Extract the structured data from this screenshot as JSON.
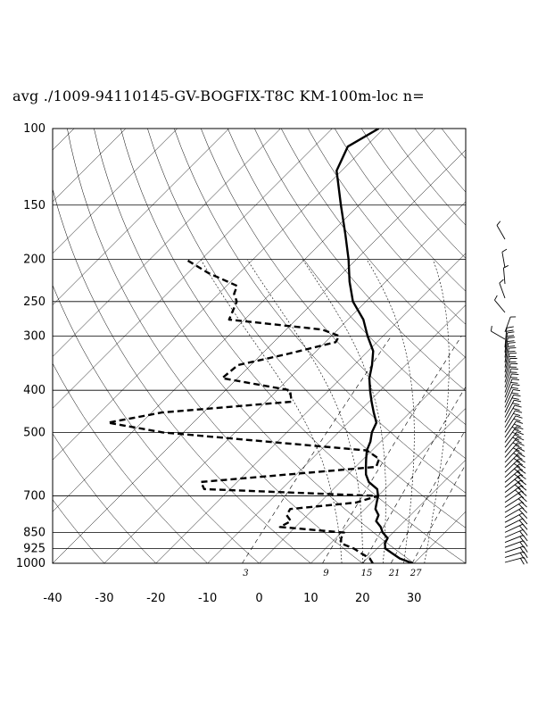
{
  "title": "avg ./1009-94110145-GV-BOGFIX-T8C KM-100m-loc n=",
  "chart_data": {
    "type": "line",
    "chart_kind": "skew-T log-P diagram",
    "title": "avg ./1009-94110145-GV-BOGFIX-T8C KM-100m-loc n=",
    "xlabel": "",
    "ylabel": "",
    "pressure_range_hPa": [
      100,
      1000
    ],
    "y_scale": "log (inverted)",
    "pressure_ticks": [
      100,
      150,
      200,
      250,
      300,
      400,
      500,
      700,
      850,
      925,
      1000
    ],
    "temperature_ticks": [
      -40,
      -30,
      -20,
      -10,
      0,
      10,
      20,
      30
    ],
    "temperature_range_at_1000hPa_C": [
      -40,
      40
    ],
    "mixing_ratio_labels": [
      "3",
      "9",
      "15",
      "21",
      "27"
    ],
    "grid": true,
    "series": [
      {
        "style": "solid",
        "points": [
          [
            1000,
            29.7
          ],
          [
            975,
            26.3
          ],
          [
            950,
            24.0
          ],
          [
            925,
            21.6
          ],
          [
            900,
            20.5
          ],
          [
            875,
            20.0
          ],
          [
            850,
            18.0
          ],
          [
            825,
            16.5
          ],
          [
            800,
            14.5
          ],
          [
            775,
            13.8
          ],
          [
            750,
            12.0
          ],
          [
            725,
            11.0
          ],
          [
            700,
            10.0
          ],
          [
            675,
            8.5
          ],
          [
            650,
            5.5
          ],
          [
            625,
            3.5
          ],
          [
            600,
            2.0
          ],
          [
            575,
            0.5
          ],
          [
            550,
            -1.0
          ],
          [
            525,
            -2.0
          ],
          [
            500,
            -3.5
          ],
          [
            475,
            -4.5
          ],
          [
            450,
            -7.0
          ],
          [
            425,
            -9.5
          ],
          [
            400,
            -12.0
          ],
          [
            375,
            -14.5
          ],
          [
            350,
            -16.5
          ],
          [
            325,
            -19.0
          ],
          [
            300,
            -23.0
          ],
          [
            275,
            -27.0
          ],
          [
            250,
            -32.5
          ],
          [
            225,
            -37.0
          ],
          [
            200,
            -41.5
          ],
          [
            175,
            -47.0
          ],
          [
            150,
            -53.5
          ],
          [
            125,
            -61.0
          ],
          [
            110,
            -63.5
          ],
          [
            100,
            -61.0
          ]
        ]
      },
      {
        "style": "dashed",
        "points": [
          [
            1000,
            22.0
          ],
          [
            975,
            20.5
          ],
          [
            950,
            18.0
          ],
          [
            925,
            15.5
          ],
          [
            900,
            12.0
          ],
          [
            875,
            11.0
          ],
          [
            850,
            10.5
          ],
          [
            825,
            -3.0
          ],
          [
            800,
            -2.0
          ],
          [
            775,
            -4.0
          ],
          [
            750,
            -4.5
          ],
          [
            725,
            7.0
          ],
          [
            700,
            10.0
          ],
          [
            675,
            -25.0
          ],
          [
            650,
            -27.0
          ],
          [
            600,
            4.0
          ],
          [
            575,
            3.0
          ],
          [
            550,
            -1.0
          ],
          [
            500,
            -44.0
          ],
          [
            475,
            -56.5
          ],
          [
            450,
            -48.0
          ],
          [
            425,
            -25.0
          ],
          [
            400,
            -27.5
          ],
          [
            375,
            -43.0
          ],
          [
            350,
            -42.5
          ],
          [
            330,
            -35.0
          ],
          [
            310,
            -28.0
          ],
          [
            300,
            -28.5
          ],
          [
            290,
            -33.0
          ],
          [
            275,
            -53.0
          ],
          [
            250,
            -55.0
          ],
          [
            240,
            -57.0
          ],
          [
            230,
            -58.0
          ],
          [
            215,
            -66.0
          ],
          [
            200,
            -73.0
          ]
        ]
      }
    ]
  }
}
